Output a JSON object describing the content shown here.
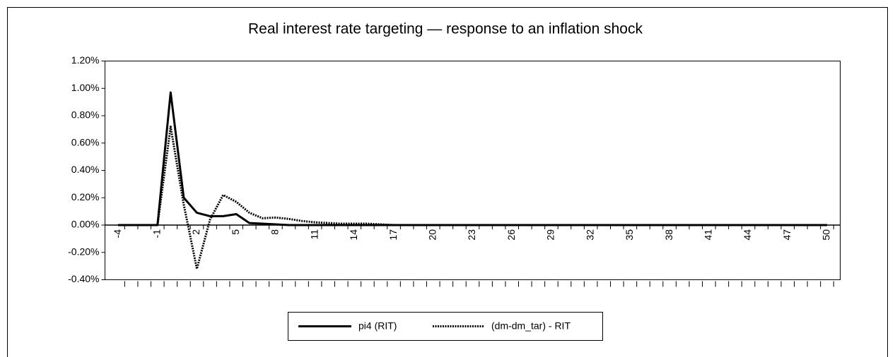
{
  "chart_data": {
    "type": "line",
    "title": "Real interest rate targeting — response to an inflation shock",
    "x": [
      -4,
      -3,
      -2,
      -1,
      0,
      1,
      2,
      3,
      4,
      5,
      6,
      7,
      8,
      9,
      10,
      11,
      12,
      13,
      14,
      15,
      16,
      17,
      18,
      19,
      20,
      21,
      22,
      23,
      24,
      25,
      26,
      27,
      28,
      29,
      30,
      31,
      32,
      33,
      34,
      35,
      36,
      37,
      38,
      39,
      40,
      41,
      42,
      43,
      44,
      45,
      46,
      47,
      48,
      49,
      50
    ],
    "xlim": [
      -5,
      51
    ],
    "xticks": [
      -4,
      -1,
      2,
      5,
      8,
      11,
      14,
      17,
      20,
      23,
      26,
      29,
      32,
      35,
      38,
      41,
      44,
      47,
      50
    ],
    "ylim": [
      -0.4,
      1.2
    ],
    "yticks": [
      {
        "value": -0.4,
        "label": "-0.40%"
      },
      {
        "value": -0.2,
        "label": "-0.20%"
      },
      {
        "value": 0,
        "label": "0.00%"
      },
      {
        "value": 0.2,
        "label": "0.20%"
      },
      {
        "value": 0.4,
        "label": "0.40%"
      },
      {
        "value": 0.6,
        "label": "0.60%"
      },
      {
        "value": 0.8,
        "label": "0.80%"
      },
      {
        "value": 1.0,
        "label": "1.00%"
      },
      {
        "value": 1.2,
        "label": "1.20%"
      }
    ],
    "legend": "bottom",
    "series": [
      {
        "name": "pi4 (RIT)",
        "color": "#000000",
        "style": "solid",
        "values": [
          0,
          0,
          0,
          0,
          0.97,
          0.2,
          0.09,
          0.065,
          0.065,
          0.08,
          0.015,
          0.01,
          0.005,
          0,
          0,
          0,
          0,
          0,
          0,
          0,
          0,
          0,
          0,
          0,
          0,
          0,
          0,
          0,
          0,
          0,
          0,
          0,
          0,
          0,
          0,
          0,
          0,
          0,
          0,
          0,
          0,
          0,
          0,
          0,
          0,
          0,
          0,
          0,
          0,
          0,
          0,
          0,
          0,
          0,
          0
        ]
      },
      {
        "name": "(dm-dm_tar) - RIT",
        "color": "#000000",
        "style": "dotted",
        "values": [
          0,
          0,
          0,
          0,
          0.72,
          0.15,
          -0.32,
          0.04,
          0.22,
          0.17,
          0.09,
          0.05,
          0.055,
          0.045,
          0.03,
          0.02,
          0.015,
          0.01,
          0.01,
          0.01,
          0.005,
          0,
          0,
          0,
          0,
          0,
          0,
          0,
          0,
          0,
          0,
          0,
          0,
          0,
          0,
          0,
          0,
          0,
          0,
          0,
          0,
          0,
          0,
          0,
          0,
          0,
          0,
          0,
          0,
          0,
          0,
          0,
          0,
          0,
          0
        ]
      }
    ]
  }
}
